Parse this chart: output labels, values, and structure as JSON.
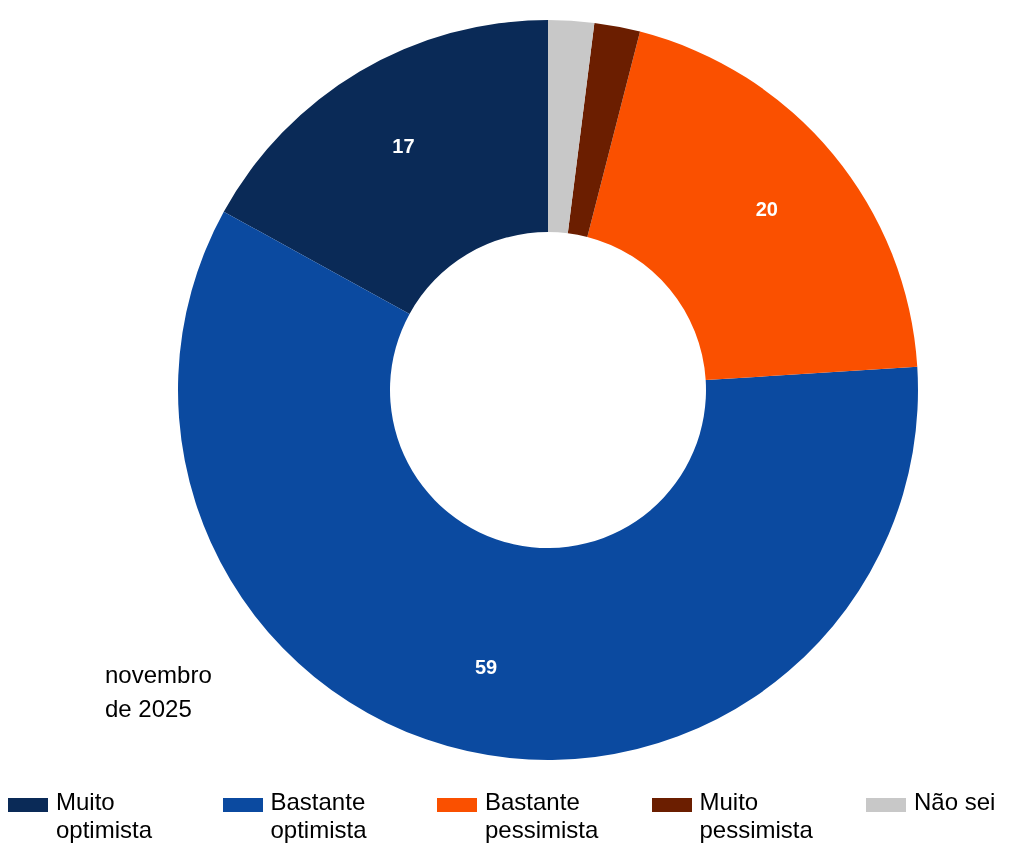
{
  "chart_data": {
    "type": "donut",
    "categories": [
      "Muito optimista",
      "Bastante optimista",
      "Bastante pessimista",
      "Muito pessimista",
      "Não sei"
    ],
    "values": [
      17,
      59,
      20,
      2,
      2
    ],
    "colors": [
      "#0a2a57",
      "#0b4aa0",
      "#fa5000",
      "#6b1e00",
      "#c8c8c8"
    ],
    "value_labels": [
      "17",
      "59",
      "20",
      null,
      null
    ],
    "annotations": [
      "novembro de 2025"
    ],
    "legend": "bottom"
  }
}
